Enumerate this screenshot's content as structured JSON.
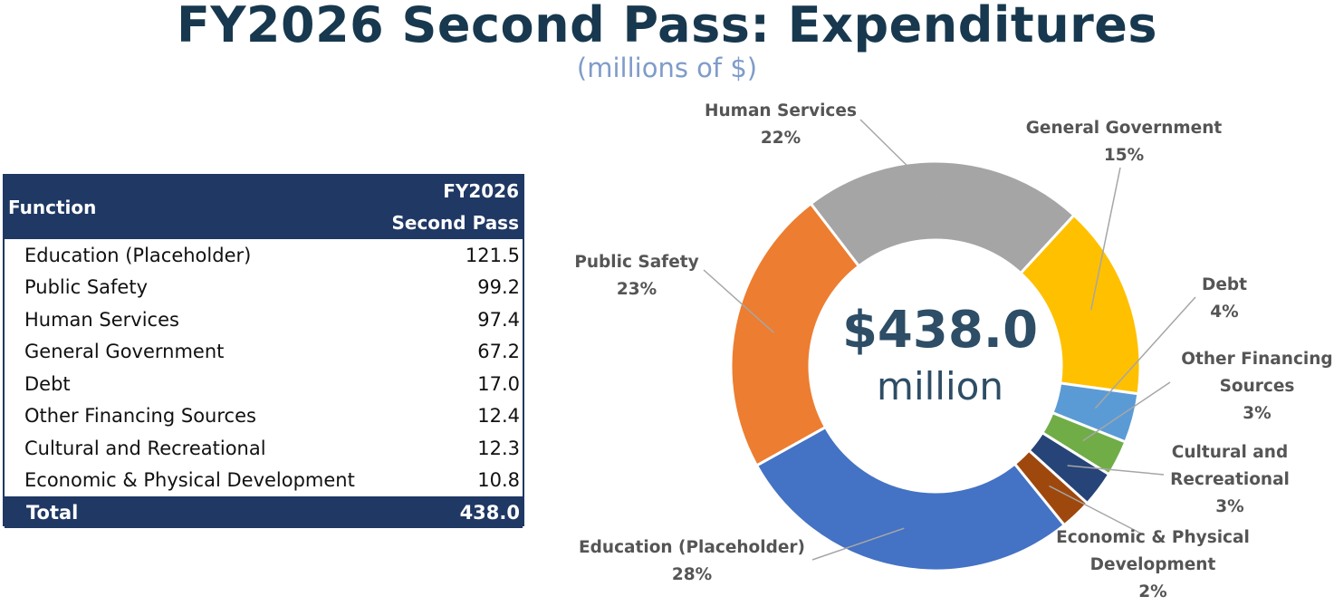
{
  "title": "FY2026 Second Pass: Expenditures",
  "subtitle": "(millions of $)",
  "table": {
    "col_function": "Function",
    "col_value_line1": "FY2026",
    "col_value_line2": "Second Pass",
    "rows": [
      {
        "name": "Education (Placeholder)",
        "value": "121.5"
      },
      {
        "name": "Public Safety",
        "value": "99.2"
      },
      {
        "name": "Human Services",
        "value": "97.4"
      },
      {
        "name": "General Government",
        "value": "67.2"
      },
      {
        "name": "Debt",
        "value": "17.0"
      },
      {
        "name": "Other Financing Sources",
        "value": "12.4"
      },
      {
        "name": "Cultural and Recreational",
        "value": "12.3"
      },
      {
        "name": "Economic & Physical Development",
        "value": "10.8"
      }
    ],
    "total_label": "Total",
    "total_value": "438.0"
  },
  "chart_data": {
    "type": "pie",
    "subtype": "donut",
    "center_amount": "$438.0",
    "center_unit": "million",
    "slices": [
      {
        "name": "Education (Placeholder)",
        "value": 121.5,
        "percent": "28%",
        "label_lines": [
          "Education (Placeholder)"
        ],
        "color": "#4472c4"
      },
      {
        "name": "Public Safety",
        "value": 99.2,
        "percent": "23%",
        "label_lines": [
          "Public Safety"
        ],
        "color": "#ed7d31"
      },
      {
        "name": "Human Services",
        "value": 97.4,
        "percent": "22%",
        "label_lines": [
          "Human Services"
        ],
        "color": "#a5a5a5"
      },
      {
        "name": "General Government",
        "value": 67.2,
        "percent": "15%",
        "label_lines": [
          "General Government"
        ],
        "color": "#ffc000"
      },
      {
        "name": "Debt",
        "value": 17.0,
        "percent": "4%",
        "label_lines": [
          "Debt"
        ],
        "color": "#5b9bd5"
      },
      {
        "name": "Other Financing Sources",
        "value": 12.4,
        "percent": "3%",
        "label_lines": [
          "Other Financing",
          "Sources"
        ],
        "color": "#70ad47"
      },
      {
        "name": "Cultural and Recreational",
        "value": 12.3,
        "percent": "3%",
        "label_lines": [
          "Cultural and",
          "Recreational"
        ],
        "color": "#264478"
      },
      {
        "name": "Economic & Physical Development",
        "value": 10.8,
        "percent": "2%",
        "label_lines": [
          "Economic & Physical",
          "Development"
        ],
        "color": "#9e480e"
      }
    ]
  }
}
